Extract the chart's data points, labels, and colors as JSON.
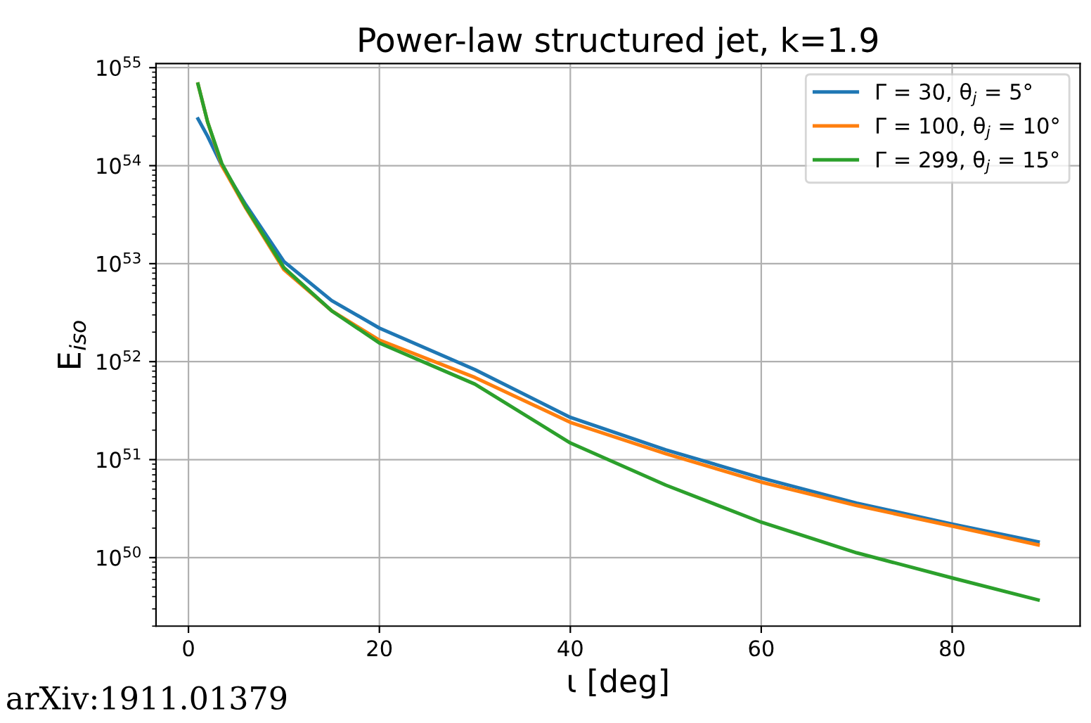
{
  "chart_data": {
    "type": "line",
    "title": "Power-law structured jet, k=1.9",
    "xlabel": "ι [deg]",
    "ylabel": "E$_{iso}$",
    "x": [
      1,
      2,
      3.5,
      6,
      10,
      15,
      20,
      30,
      40,
      50,
      60,
      70,
      80,
      89
    ],
    "series": [
      {
        "name": "Γ = 30, θ$_{j}$ = 5°",
        "color": "#1f77b4",
        "values": [
          3e+54,
          2e+54,
          1e+54,
          4e+53,
          1.05e+53,
          4.2e+52,
          2.2e+52,
          8.3e+51,
          2.7e+51,
          1.26e+51,
          6.5e+50,
          3.6e+50,
          2.2e+50,
          1.45e+50
        ]
      },
      {
        "name": "Γ = 100, θ$_{j}$ = 10°",
        "color": "#ff7f0e",
        "values": [
          6.8e+54,
          2.8e+54,
          1e+54,
          3.7e+53,
          8.7e+52,
          3.3e+52,
          1.66e+52,
          6.9e+51,
          2.4e+51,
          1.15e+51,
          5.9e+50,
          3.4e+50,
          2.1e+50,
          1.35e+50
        ]
      },
      {
        "name": "Γ = 299, θ$_{j}$ = 15°",
        "color": "#2ca02c",
        "values": [
          6.8e+54,
          2.8e+54,
          1.05e+54,
          3.8e+53,
          9.1e+52,
          3.3e+52,
          1.55e+52,
          5.9e+51,
          1.48e+51,
          5.5e+50,
          2.3e+50,
          1.12e+50,
          6.2e+49,
          3.7e+49
        ]
      }
    ],
    "log": "y",
    "xlim": [
      -3.4,
      93.4
    ],
    "ylim": [
      2e+49,
      1.1e+55
    ],
    "xticks": [
      0,
      20,
      40,
      60,
      80
    ],
    "yticks": [
      {
        "value": 1e+50,
        "label": "10$^{50}$"
      },
      {
        "value": 1e+51,
        "label": "10$^{51}$"
      },
      {
        "value": 1e+52,
        "label": "10$^{52}$"
      },
      {
        "value": 1e+53,
        "label": "10$^{53}$"
      },
      {
        "value": 1e+54,
        "label": "10$^{54}$"
      },
      {
        "value": 1e+55,
        "label": "10$^{55}$"
      }
    ],
    "grid": true,
    "legend": "top right",
    "marker": "none",
    "line_style": "solid",
    "annotations": [
      "arXiv:1911.01379"
    ]
  }
}
